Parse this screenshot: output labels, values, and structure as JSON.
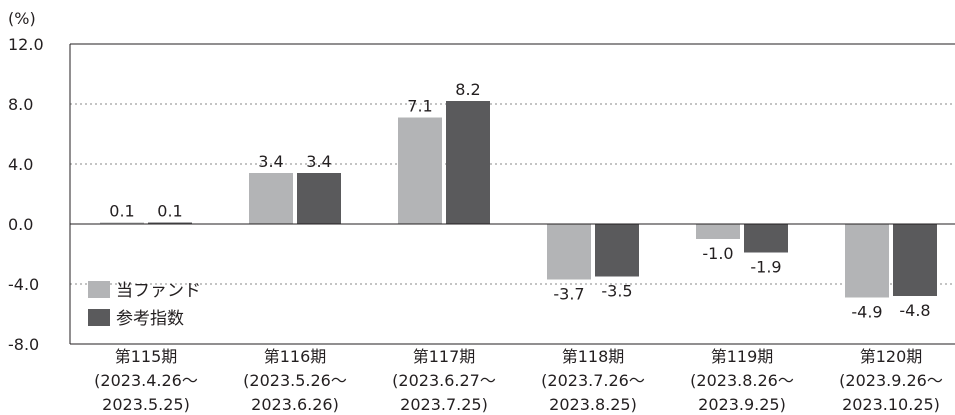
{
  "chart_data": {
    "type": "bar",
    "unit_label": "(%)",
    "ylim": [
      -8.0,
      12.0
    ],
    "y_ticks": [
      "12.0",
      "8.0",
      "4.0",
      "0.0",
      "-4.0",
      "-8.0"
    ],
    "y_tick_values": [
      12,
      8,
      4,
      0,
      -4,
      -8
    ],
    "grid": "dotted horizontal",
    "legend_position": "bottom-left",
    "categories": [
      {
        "period": "第115期",
        "range_start": "(2023.4.26～",
        "range_end": "2023.5.25)"
      },
      {
        "period": "第116期",
        "range_start": "(2023.5.26～",
        "range_end": "2023.6.26)"
      },
      {
        "period": "第117期",
        "range_start": "(2023.6.27～",
        "range_end": "2023.7.25)"
      },
      {
        "period": "第118期",
        "range_start": "(2023.7.26～",
        "range_end": "2023.8.25)"
      },
      {
        "period": "第119期",
        "range_start": "(2023.8.26～",
        "range_end": "2023.9.25)"
      },
      {
        "period": "第120期",
        "range_start": "(2023.9.26～",
        "range_end": "2023.10.25)"
      }
    ],
    "series": [
      {
        "name": "当ファンド",
        "color": "#b3b4b6",
        "values": [
          0.1,
          3.4,
          7.1,
          -3.7,
          -1.0,
          -4.9
        ],
        "labels": [
          "0.1",
          "3.4",
          "7.1",
          "-3.7",
          "-1.0",
          "-4.9"
        ]
      },
      {
        "name": "参考指数",
        "color": "#5a5a5c",
        "values": [
          0.1,
          3.4,
          8.2,
          -3.5,
          -1.9,
          -4.8
        ],
        "labels": [
          "0.1",
          "3.4",
          "8.2",
          "-3.5",
          "-1.9",
          "-4.8"
        ]
      }
    ]
  }
}
